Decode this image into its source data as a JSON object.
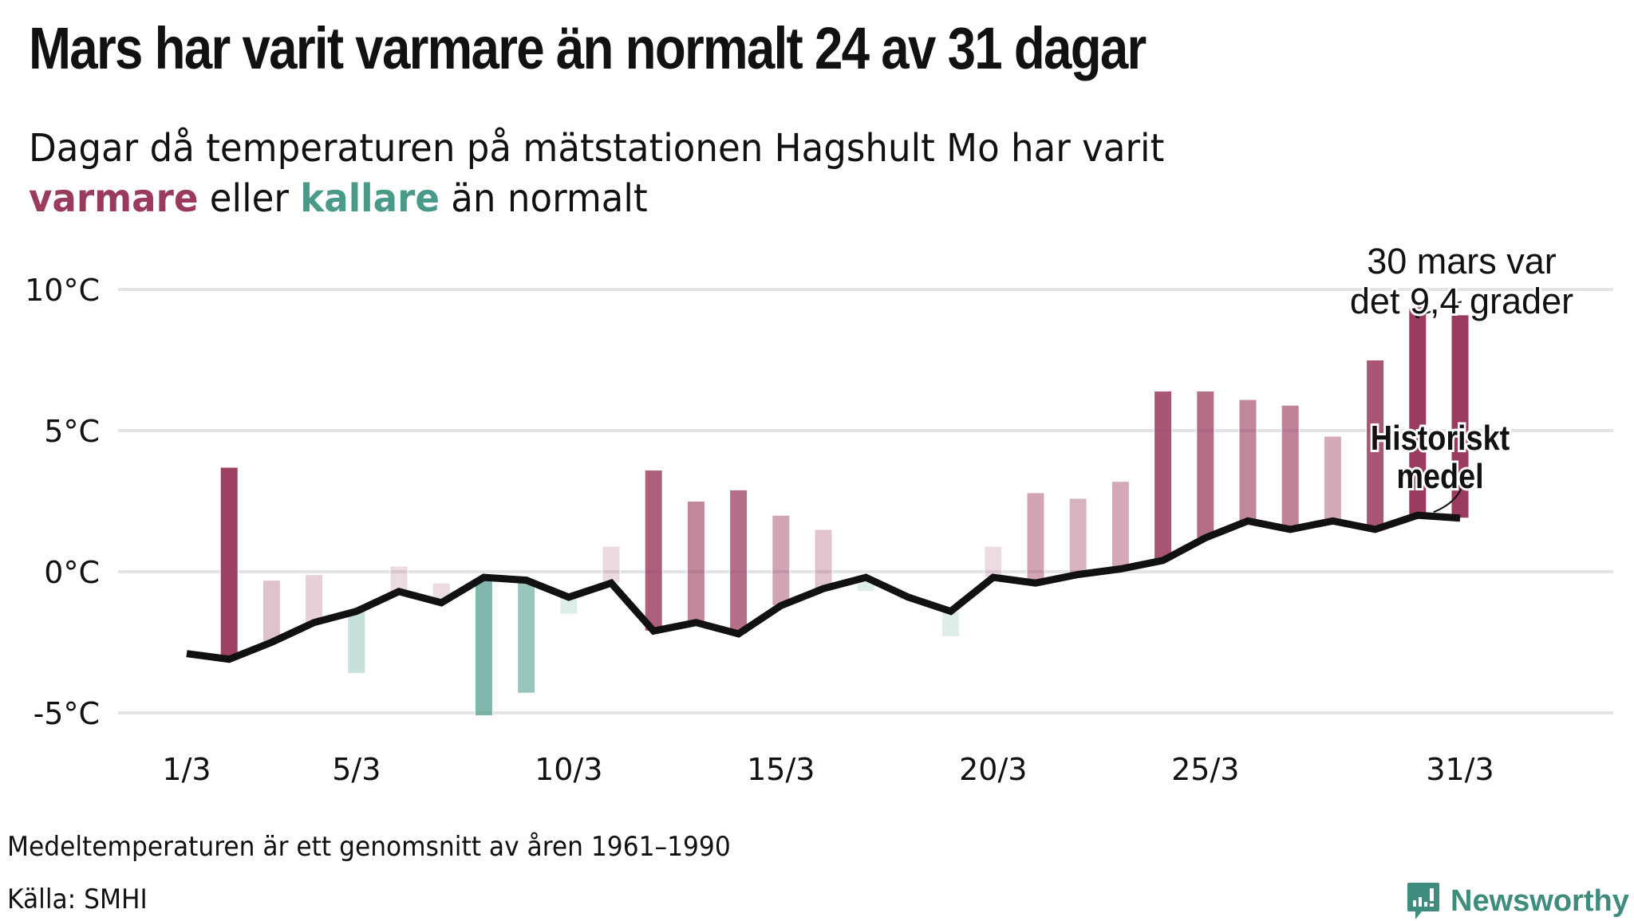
{
  "header": {
    "title": "Mars har varit varmare än normalt 24 av 31 dagar",
    "subtitle_line1": "Dagar då temperaturen på mätstationen Hagshult Mo har varit",
    "subtitle_warm": "varmare",
    "subtitle_mid": " eller ",
    "subtitle_cold": "kallare",
    "subtitle_end": " än normalt"
  },
  "colors": {
    "warm": "#9b3a5f",
    "cold": "#4a9a8a",
    "line": "#111111",
    "grid": "#e4e3e8"
  },
  "chart_data": {
    "type": "bar",
    "title": "Mars har varit varmare än normalt 24 av 31 dagar",
    "xlabel": "",
    "ylabel": "",
    "ylim": [
      -5.5,
      11
    ],
    "yticks": [
      -5,
      0,
      5,
      10
    ],
    "ytick_labels": [
      "-5°C",
      "0°C",
      "5°C",
      "10°C"
    ],
    "grid": true,
    "x": [
      1,
      2,
      3,
      4,
      5,
      6,
      7,
      8,
      9,
      10,
      11,
      12,
      13,
      14,
      15,
      16,
      17,
      18,
      19,
      20,
      21,
      22,
      23,
      24,
      25,
      26,
      27,
      28,
      29,
      30,
      31
    ],
    "xticks": [
      1,
      5,
      10,
      15,
      20,
      25,
      31
    ],
    "xtick_labels": [
      "1/3",
      "5/3",
      "10/3",
      "15/3",
      "20/3",
      "25/3",
      "31/3"
    ],
    "series": [
      {
        "name": "Temperatur",
        "kind": "bar-from-mean",
        "values": [
          null,
          3.7,
          -0.3,
          -0.1,
          -3.6,
          0.2,
          -0.4,
          -5.1,
          -4.3,
          -1.5,
          0.9,
          3.6,
          2.5,
          2.9,
          2.0,
          1.5,
          -0.7,
          -1.0,
          -2.3,
          0.9,
          2.8,
          2.6,
          3.2,
          6.4,
          6.4,
          6.1,
          5.9,
          4.8,
          7.5,
          9.4,
          9.1
        ]
      },
      {
        "name": "Historiskt medel",
        "kind": "line",
        "values": [
          -2.9,
          -3.1,
          -2.5,
          -1.8,
          -1.4,
          -0.7,
          -1.1,
          -0.2,
          -0.3,
          -0.9,
          -0.4,
          -2.1,
          -1.8,
          -2.2,
          -1.2,
          -0.6,
          -0.2,
          -0.9,
          -1.4,
          -0.2,
          -0.4,
          -0.1,
          0.1,
          0.4,
          1.2,
          1.8,
          1.5,
          1.8,
          1.5,
          2.0,
          1.9
        ]
      }
    ],
    "annotations": [
      {
        "text_line1": "30 mars var",
        "text_line2": "det 9,4 grader",
        "target_day": 30,
        "target_value": 9.4
      },
      {
        "text_line1": "Historiskt",
        "text_line2": "medel",
        "target_day": 30.7,
        "target_value": 2.0
      }
    ]
  },
  "footer": {
    "note": "Medeltemperaturen är ett genomsnitt av åren 1961–1990",
    "source": "Källa: SMHI",
    "logo_text": "Newsworthy",
    "logo_icon": "bar-chart-speech-bubble-icon"
  }
}
